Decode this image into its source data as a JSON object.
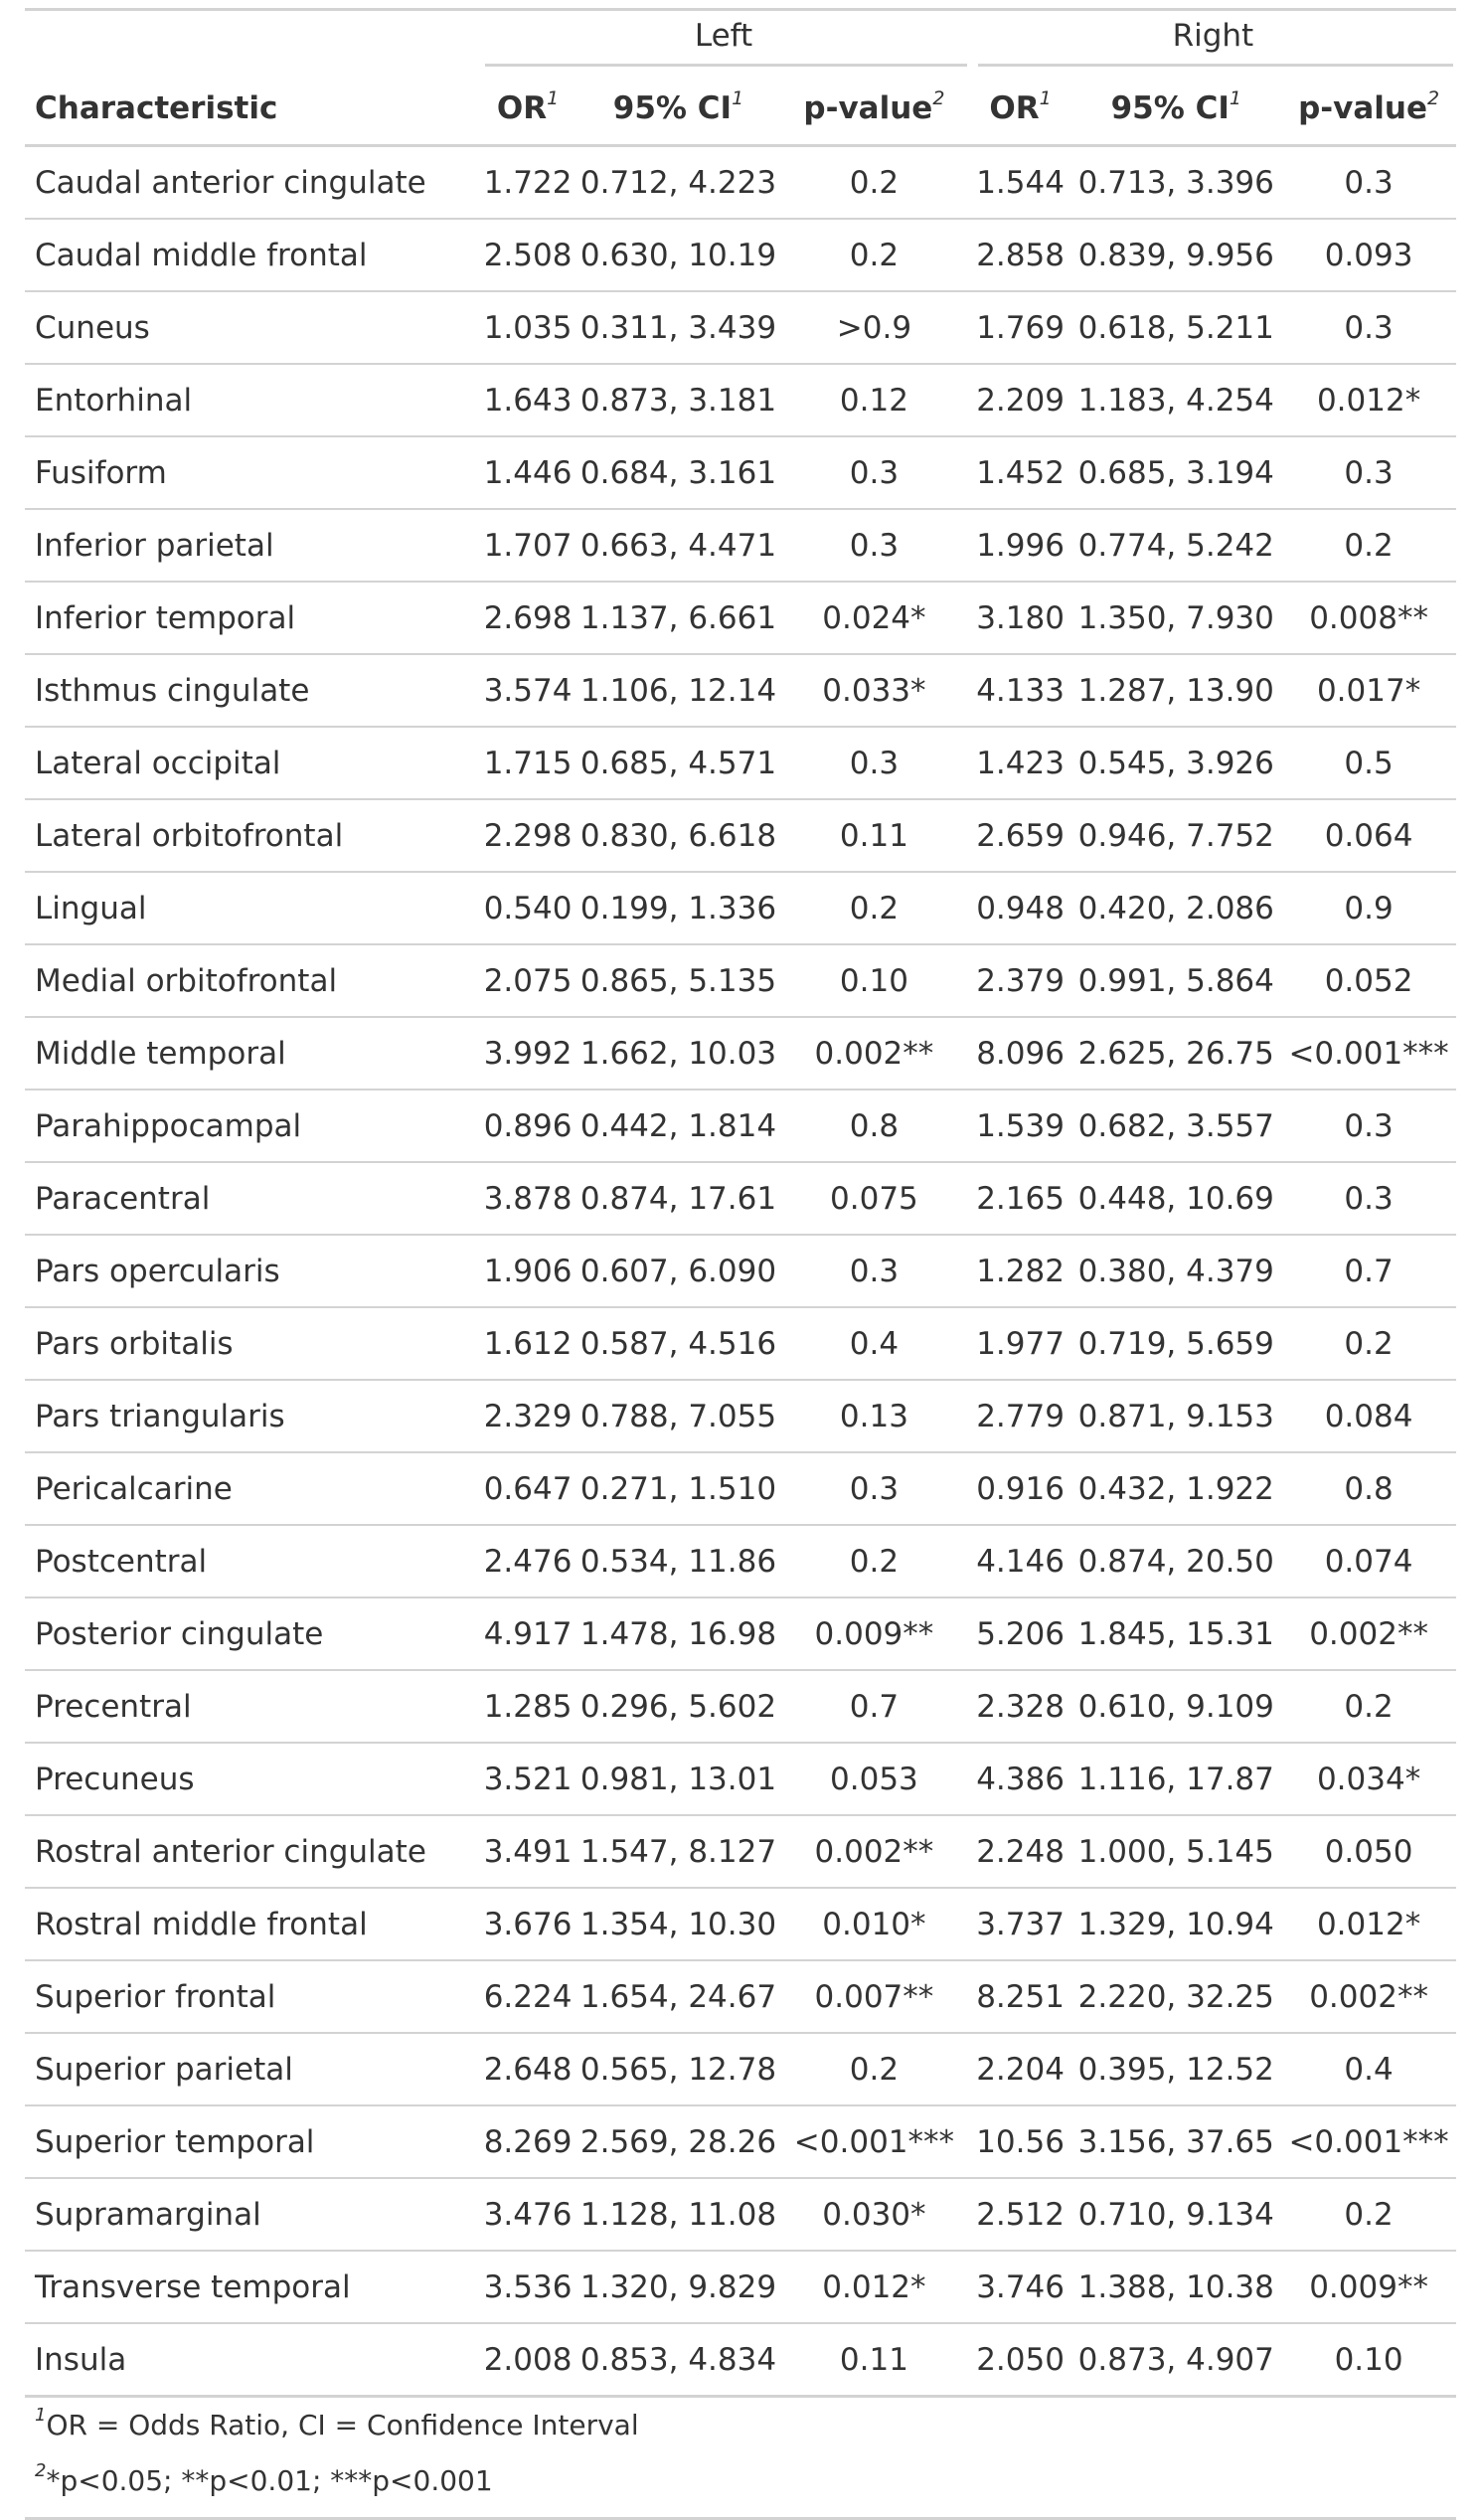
{
  "header": {
    "spanners": [
      "Left",
      "Right"
    ],
    "columns": {
      "characteristic": "Characteristic",
      "or": "OR",
      "ci": "95% CI",
      "p": "p-value",
      "or_note": "1",
      "ci_note": "1",
      "p_note": "2"
    }
  },
  "rows": [
    [
      "Caudal anterior cingulate",
      "1.722",
      "0.712, 4.223",
      "0.2",
      "1.544",
      "0.713, 3.396",
      "0.3"
    ],
    [
      "Caudal middle frontal",
      "2.508",
      "0.630, 10.19",
      "0.2",
      "2.858",
      "0.839, 9.956",
      "0.093"
    ],
    [
      "Cuneus",
      "1.035",
      "0.311, 3.439",
      ">0.9",
      "1.769",
      "0.618, 5.211",
      "0.3"
    ],
    [
      "Entorhinal",
      "1.643",
      "0.873, 3.181",
      "0.12",
      "2.209",
      "1.183, 4.254",
      "0.012*"
    ],
    [
      "Fusiform",
      "1.446",
      "0.684, 3.161",
      "0.3",
      "1.452",
      "0.685, 3.194",
      "0.3"
    ],
    [
      "Inferior parietal",
      "1.707",
      "0.663, 4.471",
      "0.3",
      "1.996",
      "0.774, 5.242",
      "0.2"
    ],
    [
      "Inferior temporal",
      "2.698",
      "1.137, 6.661",
      "0.024*",
      "3.180",
      "1.350, 7.930",
      "0.008**"
    ],
    [
      "Isthmus cingulate",
      "3.574",
      "1.106, 12.14",
      "0.033*",
      "4.133",
      "1.287, 13.90",
      "0.017*"
    ],
    [
      "Lateral occipital",
      "1.715",
      "0.685, 4.571",
      "0.3",
      "1.423",
      "0.545, 3.926",
      "0.5"
    ],
    [
      "Lateral orbitofrontal",
      "2.298",
      "0.830, 6.618",
      "0.11",
      "2.659",
      "0.946, 7.752",
      "0.064"
    ],
    [
      "Lingual",
      "0.540",
      "0.199, 1.336",
      "0.2",
      "0.948",
      "0.420, 2.086",
      "0.9"
    ],
    [
      "Medial orbitofrontal",
      "2.075",
      "0.865, 5.135",
      "0.10",
      "2.379",
      "0.991, 5.864",
      "0.052"
    ],
    [
      "Middle temporal",
      "3.992",
      "1.662, 10.03",
      "0.002**",
      "8.096",
      "2.625, 26.75",
      "<0.001***"
    ],
    [
      "Parahippocampal",
      "0.896",
      "0.442, 1.814",
      "0.8",
      "1.539",
      "0.682, 3.557",
      "0.3"
    ],
    [
      "Paracentral",
      "3.878",
      "0.874, 17.61",
      "0.075",
      "2.165",
      "0.448, 10.69",
      "0.3"
    ],
    [
      "Pars opercularis",
      "1.906",
      "0.607, 6.090",
      "0.3",
      "1.282",
      "0.380, 4.379",
      "0.7"
    ],
    [
      "Pars orbitalis",
      "1.612",
      "0.587, 4.516",
      "0.4",
      "1.977",
      "0.719, 5.659",
      "0.2"
    ],
    [
      "Pars triangularis",
      "2.329",
      "0.788, 7.055",
      "0.13",
      "2.779",
      "0.871, 9.153",
      "0.084"
    ],
    [
      "Pericalcarine",
      "0.647",
      "0.271, 1.510",
      "0.3",
      "0.916",
      "0.432, 1.922",
      "0.8"
    ],
    [
      "Postcentral",
      "2.476",
      "0.534, 11.86",
      "0.2",
      "4.146",
      "0.874, 20.50",
      "0.074"
    ],
    [
      "Posterior cingulate",
      "4.917",
      "1.478, 16.98",
      "0.009**",
      "5.206",
      "1.845, 15.31",
      "0.002**"
    ],
    [
      "Precentral",
      "1.285",
      "0.296, 5.602",
      "0.7",
      "2.328",
      "0.610, 9.109",
      "0.2"
    ],
    [
      "Precuneus",
      "3.521",
      "0.981, 13.01",
      "0.053",
      "4.386",
      "1.116, 17.87",
      "0.034*"
    ],
    [
      "Rostral anterior cingulate",
      "3.491",
      "1.547, 8.127",
      "0.002**",
      "2.248",
      "1.000, 5.145",
      "0.050"
    ],
    [
      "Rostral middle frontal",
      "3.676",
      "1.354, 10.30",
      "0.010*",
      "3.737",
      "1.329, 10.94",
      "0.012*"
    ],
    [
      "Superior frontal",
      "6.224",
      "1.654, 24.67",
      "0.007**",
      "8.251",
      "2.220, 32.25",
      "0.002**"
    ],
    [
      "Superior parietal",
      "2.648",
      "0.565, 12.78",
      "0.2",
      "2.204",
      "0.395, 12.52",
      "0.4"
    ],
    [
      "Superior temporal",
      "8.269",
      "2.569, 28.26",
      "<0.001***",
      "10.56",
      "3.156, 37.65",
      "<0.001***"
    ],
    [
      "Supramarginal",
      "3.476",
      "1.128, 11.08",
      "0.030*",
      "2.512",
      "0.710, 9.134",
      "0.2"
    ],
    [
      "Transverse temporal",
      "3.536",
      "1.320, 9.829",
      "0.012*",
      "3.746",
      "1.388, 10.38",
      "0.009**"
    ],
    [
      "Insula",
      "2.008",
      "0.853, 4.834",
      "0.11",
      "2.050",
      "0.873, 4.907",
      "0.10"
    ]
  ],
  "footnotes": [
    {
      "mark": "1",
      "text": "OR = Odds Ratio, CI = Confidence Interval"
    },
    {
      "mark": "2",
      "text": "*p<0.05; **p<0.01; ***p<0.001"
    }
  ]
}
